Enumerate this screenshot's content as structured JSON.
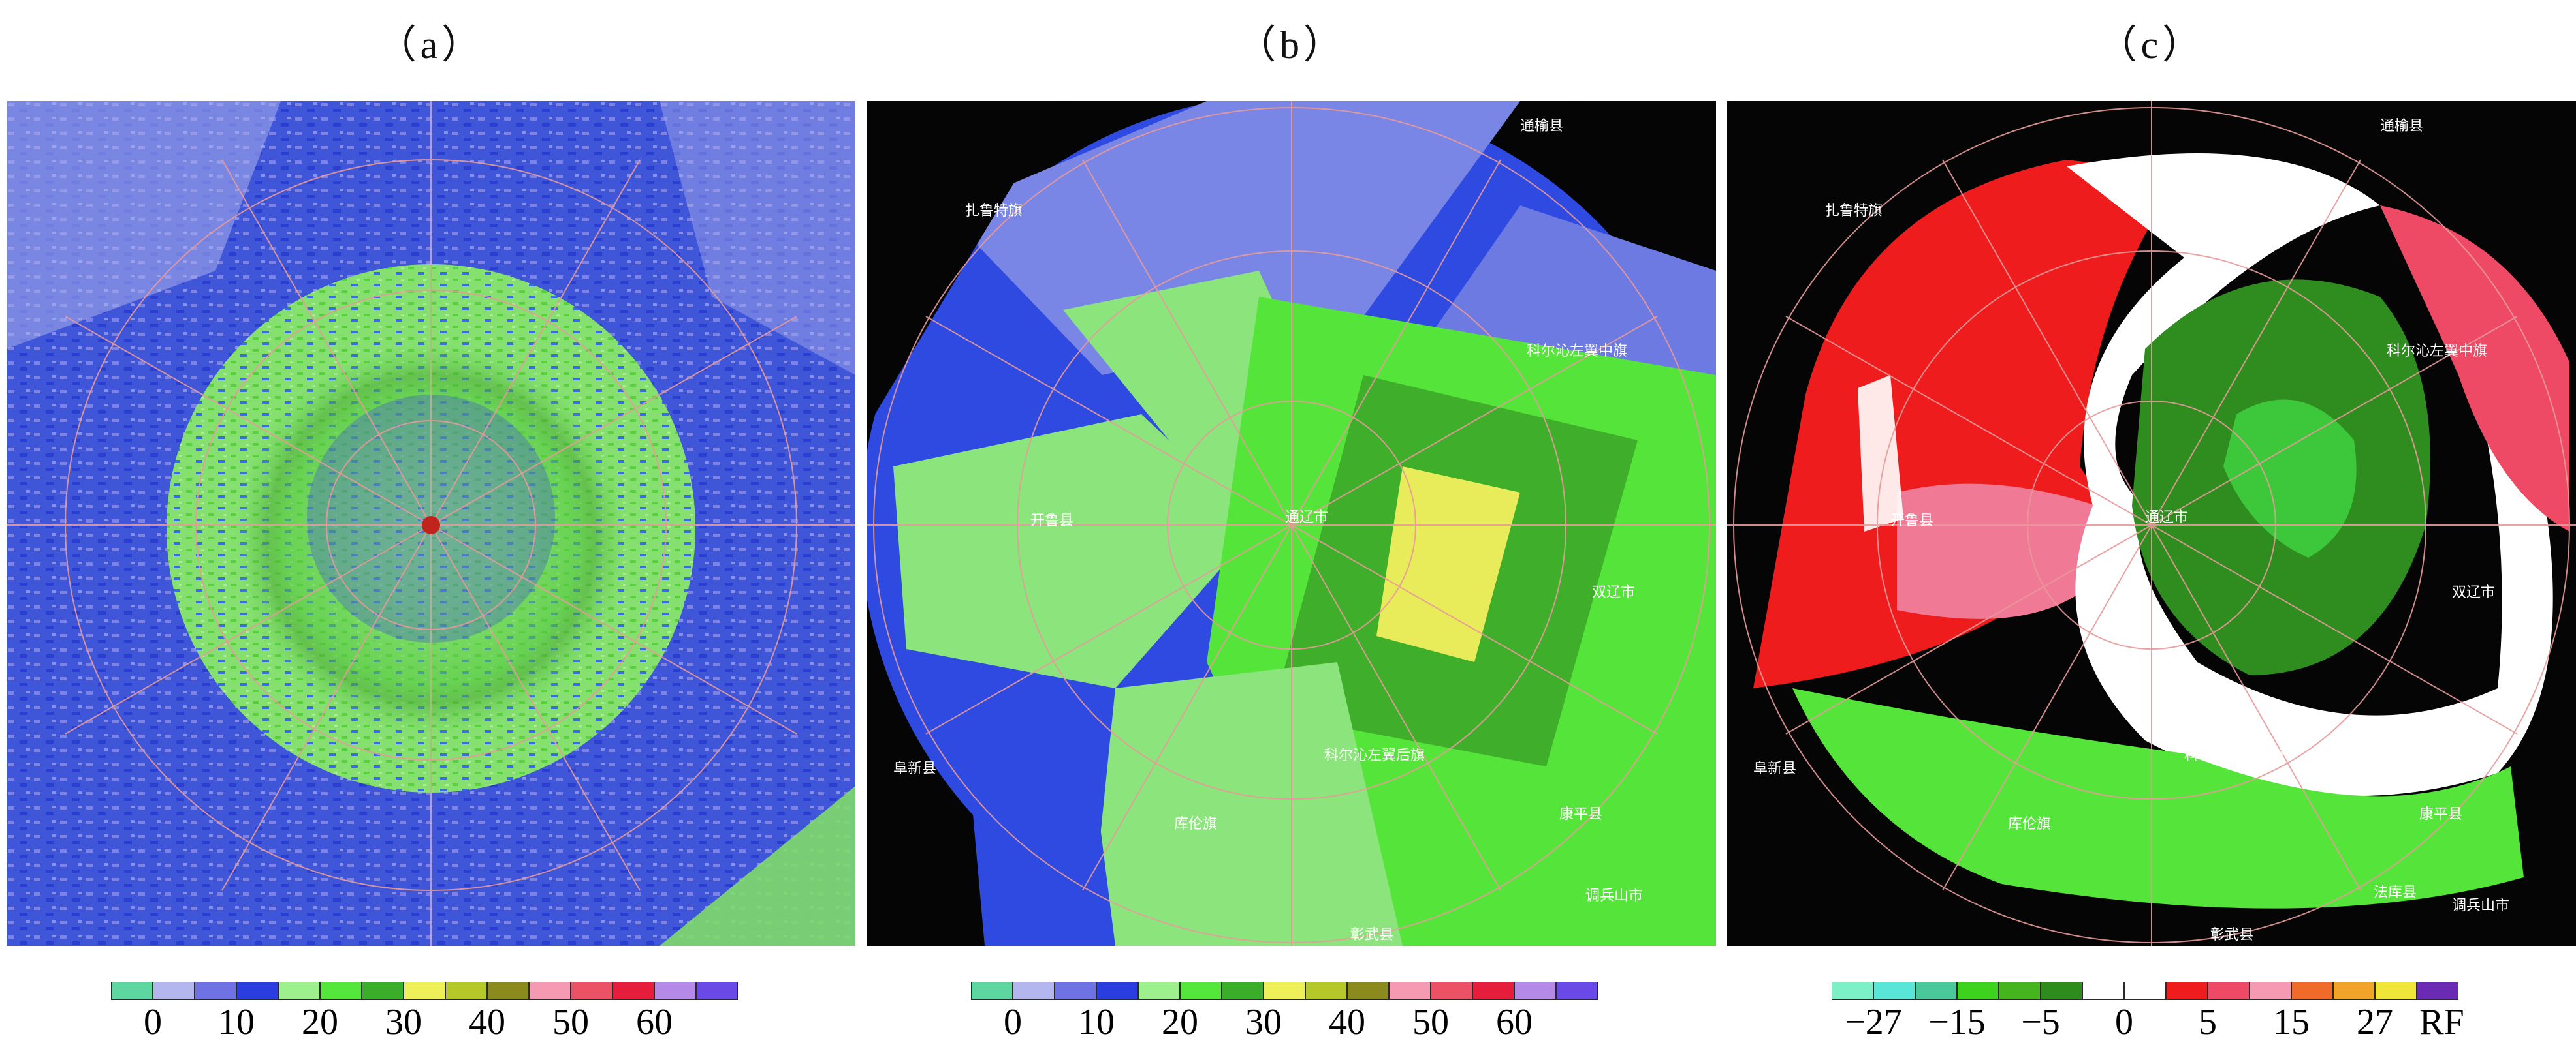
{
  "panels": [
    {
      "label": "（a）"
    },
    {
      "label": "（b）"
    },
    {
      "label": "（c）"
    }
  ],
  "place_names": {
    "zhalute": "扎鲁特旗",
    "tongliao": "通辽市",
    "kailu": "开鲁县",
    "keerqin_zuozhong": "科尔沁左翼中旗",
    "keerqin_zuohou": "科尔沁左翼后旗",
    "tongyu": "通榆县",
    "shuangliao": "双辽市",
    "zhangwu": "彰武县",
    "kulun": "库伦旗",
    "fuxin": "阜新县",
    "kangping": "康平县",
    "diaobingshan": "调兵山市",
    "faku": "法库县"
  },
  "reflectivity_colorbar": {
    "colors": [
      "#5dd6a0",
      "#b4b6ee",
      "#6f72e2",
      "#2a3ee0",
      "#9ef08c",
      "#55e63c",
      "#3aae2a",
      "#eef05a",
      "#b4c82a",
      "#8a8a1e",
      "#f49ab2",
      "#ec5266",
      "#e61e3c",
      "#b48ae6",
      "#6a4ae6"
    ],
    "tick_labels": [
      "0",
      "10",
      "20",
      "30",
      "40",
      "50",
      "60"
    ]
  },
  "velocity_colorbar": {
    "colors": [
      "#7ef0c8",
      "#5ae6d6",
      "#4ac89a",
      "#3cd21e",
      "#46b41e",
      "#2e8c1e",
      "#ffffff",
      "#ffffff",
      "#ee1c1c",
      "#ee4a66",
      "#f49ab2",
      "#f06a2a",
      "#f0a42a",
      "#f0e63a",
      "#6a2ab4"
    ],
    "tick_labels": [
      "−27",
      "−15",
      "−5",
      "0",
      "5",
      "15",
      "27",
      "RF"
    ]
  }
}
